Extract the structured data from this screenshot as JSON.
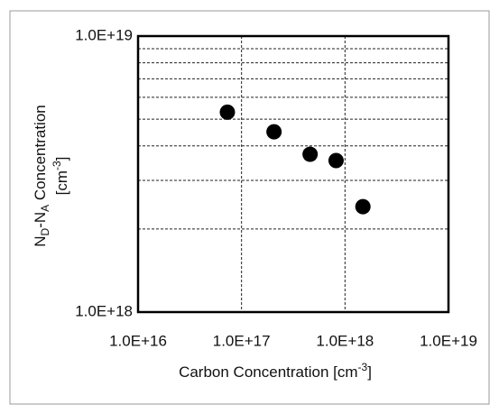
{
  "chart_data": {
    "type": "scatter",
    "xlabel": [
      {
        "text": "Carbon Concentration [cm"
      },
      {
        "text": "-3",
        "shift": "super"
      },
      {
        "text": "]"
      }
    ],
    "ylabel": [
      [
        {
          "text": "N"
        },
        {
          "text": "D",
          "shift": "sub"
        },
        {
          "text": "-N"
        },
        {
          "text": "A",
          "shift": "sub"
        },
        {
          "text": " Concentration"
        }
      ],
      [
        {
          "text": "[cm"
        },
        {
          "text": "-3",
          "shift": "super"
        },
        {
          "text": "]"
        }
      ]
    ],
    "x": [
      7.3e+16,
      2.06e+17,
      4.6e+17,
      8.2e+17,
      1.49e+18
    ],
    "values": [
      5.3e+18,
      4.5e+18,
      3.73e+18,
      3.54e+18,
      2.41e+18
    ],
    "color": "#000000",
    "xlog": true,
    "ylog": true,
    "xlim": [
      1e+16,
      1e+19
    ],
    "ylim": [
      1e+18,
      1e+19
    ],
    "xticks": [
      {
        "value": 1e+16,
        "label": "1.0E+16"
      },
      {
        "value": 1e+17,
        "label": "1.0E+17"
      },
      {
        "value": 1e+18,
        "label": "1.0E+18"
      },
      {
        "value": 1e+19,
        "label": "1.0E+19"
      }
    ],
    "yticks": [
      {
        "value": 1e+18,
        "label": "1.0E+18"
      },
      {
        "value": 1e+19,
        "label": "1.0E+19"
      }
    ],
    "y_minor_ticks": [
      2e+18,
      3e+18,
      4e+18,
      5e+18,
      6e+18,
      7e+18,
      8e+18,
      9e+18
    ],
    "grid": true
  }
}
